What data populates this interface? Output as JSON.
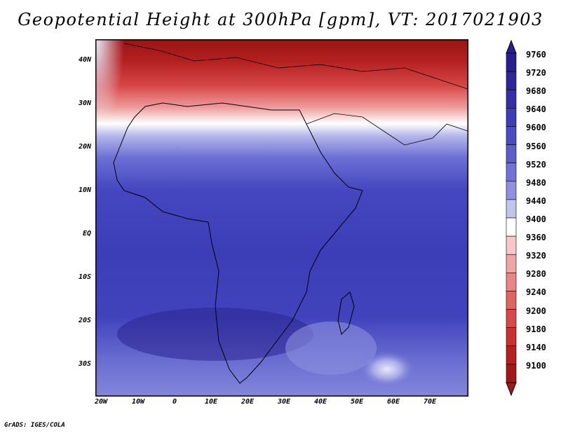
{
  "title": "Geopotential Height at 300hPa [gpm], VT: 2017021903",
  "footer": "GrADS: IGES/COLA",
  "axes": {
    "lat_labels": [
      "40N",
      "30N",
      "20N",
      "10N",
      "EQ",
      "10S",
      "20S",
      "30S"
    ],
    "lon_labels": [
      "20W",
      "10W",
      "0",
      "10E",
      "20E",
      "30E",
      "40E",
      "50E",
      "60E",
      "70E"
    ]
  },
  "colorbar": {
    "labels": [
      "9760",
      "9720",
      "9680",
      "9640",
      "9600",
      "9560",
      "9520",
      "9480",
      "9440",
      "9400",
      "9360",
      "9320",
      "9280",
      "9240",
      "9200",
      "9180",
      "9140",
      "9100"
    ],
    "colors": [
      "#2a1e8c",
      "#2d259a",
      "#3431a8",
      "#3d3eb6",
      "#4a4dc2",
      "#5b5fcc",
      "#7173d6",
      "#9090e2",
      "#c2c4f0",
      "#ffffff",
      "#f6c8c8",
      "#efa6a6",
      "#e88585",
      "#e06464",
      "#d84848",
      "#c93131",
      "#b42020",
      "#a01818"
    ]
  },
  "colors": {
    "low": "#b42020",
    "mid": "#ffffff",
    "high": "#3a3aba"
  }
}
